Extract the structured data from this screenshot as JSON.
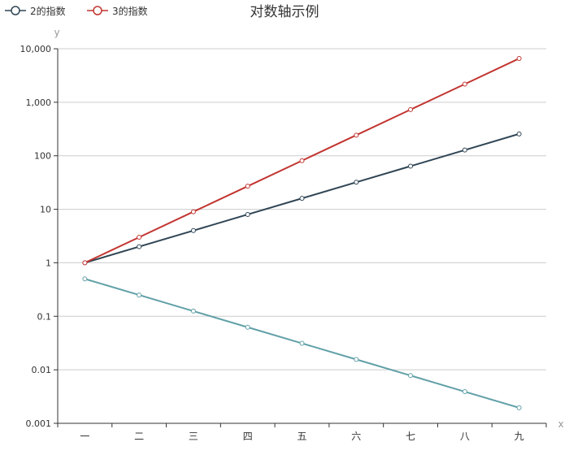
{
  "chart_data": {
    "type": "line",
    "title": "对数轴示例",
    "xlabel": "x",
    "ylabel": "y",
    "categories": [
      "一",
      "二",
      "三",
      "四",
      "五",
      "六",
      "七",
      "八",
      "九"
    ],
    "y_scale": "log",
    "ylim": [
      0.001,
      10000
    ],
    "y_ticks": [
      0.001,
      0.01,
      0.1,
      1,
      10,
      100,
      1000,
      10000
    ],
    "y_tick_labels": [
      "0.001",
      "0.01",
      "0.1",
      "1",
      "10",
      "100",
      "1,000",
      "10,000"
    ],
    "grid": true,
    "legend_position": "top-left",
    "series": [
      {
        "name": "2的指数",
        "color": "#2f4554",
        "values": [
          1,
          2,
          4,
          8,
          16,
          32,
          64,
          128,
          256
        ]
      },
      {
        "name": "3的指数",
        "color": "#c23531",
        "values": [
          1,
          3,
          9,
          27,
          81,
          243,
          729,
          2187,
          6561
        ]
      },
      {
        "name": "",
        "color": "#61a0a8",
        "values": [
          0.5,
          0.25,
          0.125,
          0.0625,
          0.03125,
          0.015625,
          0.0078125,
          0.00390625,
          0.001953125
        ]
      }
    ]
  }
}
